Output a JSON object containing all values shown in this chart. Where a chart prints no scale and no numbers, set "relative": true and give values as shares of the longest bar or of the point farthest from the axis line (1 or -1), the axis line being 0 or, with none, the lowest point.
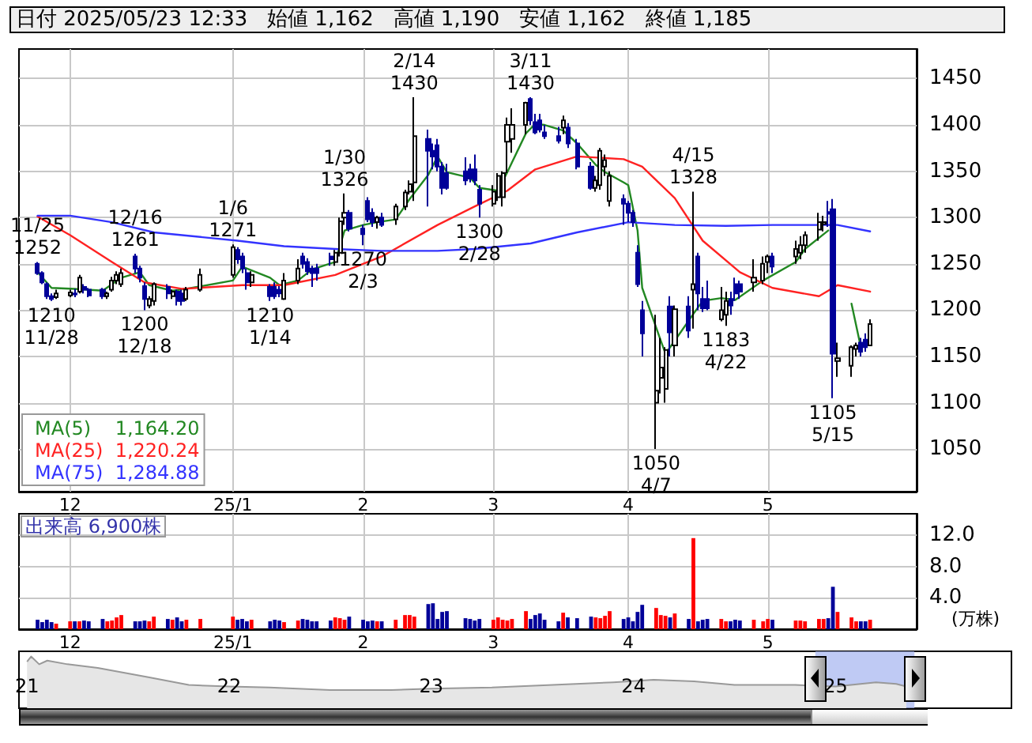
{
  "chart_data": [
    {
      "type": "candlestick",
      "title": "日付 2025/05/23 12:33",
      "annotations": [
        "始値 1,162",
        "高値 1,190",
        "安値 1,162",
        "終値 1,185",
        {
          "text": "11/25\n1252",
          "x": "2024-11-25",
          "y": 1252
        },
        {
          "text": "1210\n11/28",
          "x": "2024-11-28",
          "y": 1210
        },
        {
          "text": "12/16\n1261",
          "x": "2024-12-16",
          "y": 1261
        },
        {
          "text": "1200\n12/18",
          "x": "2024-12-18",
          "y": 1200
        },
        {
          "text": "1/6\n1271",
          "x": "2025-01-06",
          "y": 1271
        },
        {
          "text": "1210\n1/14",
          "x": "2025-01-14",
          "y": 1210
        },
        {
          "text": "1/30\n1326",
          "x": "2025-01-30",
          "y": 1326
        },
        {
          "text": "1270\n2/3",
          "x": "2025-02-03",
          "y": 1270
        },
        {
          "text": "2/14\n1430",
          "x": "2025-02-14",
          "y": 1430
        },
        {
          "text": "1300\n2/28",
          "x": "2025-02-28",
          "y": 1300
        },
        {
          "text": "3/11\n1430",
          "x": "2025-03-11",
          "y": 1430
        },
        {
          "text": "1050\n4/7",
          "x": "2025-04-07",
          "y": 1050
        },
        {
          "text": "4/15\n1328",
          "x": "2025-04-15",
          "y": 1328
        },
        {
          "text": "1183\n4/22",
          "x": "2025-04-22",
          "y": 1183
        },
        {
          "text": "1105\n5/15",
          "x": "2025-05-15",
          "y": 1105
        }
      ],
      "x": [
        "2024-11-25",
        "2024-11-26",
        "2024-11-27",
        "2024-11-28",
        "2024-11-29",
        "2024-12-02",
        "2024-12-03",
        "2024-12-04",
        "2024-12-05",
        "2024-12-06",
        "2024-12-09",
        "2024-12-10",
        "2024-12-11",
        "2024-12-12",
        "2024-12-13",
        "2024-12-16",
        "2024-12-17",
        "2024-12-18",
        "2024-12-19",
        "2024-12-20",
        "2024-12-23",
        "2024-12-24",
        "2024-12-25",
        "2024-12-26",
        "2024-12-27",
        "2024-12-30",
        "2025-01-06",
        "2025-01-07",
        "2025-01-08",
        "2025-01-09",
        "2025-01-10",
        "2025-01-14",
        "2025-01-15",
        "2025-01-16",
        "2025-01-17",
        "2025-01-20",
        "2025-01-21",
        "2025-01-22",
        "2025-01-23",
        "2025-01-24",
        "2025-01-27",
        "2025-01-28",
        "2025-01-29",
        "2025-01-30",
        "2025-01-31",
        "2025-02-03",
        "2025-02-04",
        "2025-02-05",
        "2025-02-06",
        "2025-02-07",
        "2025-02-10",
        "2025-02-12",
        "2025-02-13",
        "2025-02-14",
        "2025-02-17",
        "2025-02-18",
        "2025-02-19",
        "2025-02-20",
        "2025-02-21",
        "2025-02-25",
        "2025-02-26",
        "2025-02-27",
        "2025-02-28",
        "2025-03-03",
        "2025-03-04",
        "2025-03-05",
        "2025-03-06",
        "2025-03-07",
        "2025-03-10",
        "2025-03-11",
        "2025-03-12",
        "2025-03-13",
        "2025-03-14",
        "2025-03-17",
        "2025-03-18",
        "2025-03-19",
        "2025-03-21",
        "2025-03-24",
        "2025-03-25",
        "2025-03-26",
        "2025-03-27",
        "2025-03-28",
        "2025-03-31",
        "2025-04-01",
        "2025-04-02",
        "2025-04-03",
        "2025-04-04",
        "2025-04-07",
        "2025-04-08",
        "2025-04-09",
        "2025-04-10",
        "2025-04-11",
        "2025-04-14",
        "2025-04-15",
        "2025-04-16",
        "2025-04-17",
        "2025-04-18",
        "2025-04-21",
        "2025-04-22",
        "2025-04-23",
        "2025-04-24",
        "2025-04-25",
        "2025-04-28",
        "2025-04-30",
        "2025-05-01",
        "2025-05-02",
        "2025-05-07",
        "2025-05-08",
        "2025-05-09",
        "2025-05-12",
        "2025-05-13",
        "2025-05-14",
        "2025-05-15",
        "2025-05-16",
        "2025-05-19",
        "2025-05-20",
        "2025-05-21",
        "2025-05-22",
        "2025-05-23"
      ],
      "ohlc": [
        [
          1250,
          1252,
          1238,
          1240
        ],
        [
          1240,
          1242,
          1228,
          1230
        ],
        [
          1228,
          1230,
          1212,
          1215
        ],
        [
          1215,
          1218,
          1210,
          1212
        ],
        [
          1214,
          1222,
          1212,
          1218
        ],
        [
          1216,
          1222,
          1214,
          1219
        ],
        [
          1218,
          1223,
          1214,
          1217
        ],
        [
          1220,
          1238,
          1218,
          1235
        ],
        [
          1225,
          1228,
          1218,
          1222
        ],
        [
          1222,
          1224,
          1214,
          1216
        ],
        [
          1222,
          1224,
          1212,
          1215
        ],
        [
          1215,
          1220,
          1212,
          1218
        ],
        [
          1222,
          1236,
          1220,
          1232
        ],
        [
          1232,
          1242,
          1228,
          1238
        ],
        [
          1228,
          1245,
          1225,
          1240
        ],
        [
          1258,
          1261,
          1240,
          1245
        ],
        [
          1245,
          1248,
          1230,
          1235
        ],
        [
          1226,
          1230,
          1200,
          1212
        ],
        [
          1205,
          1215,
          1202,
          1212
        ],
        [
          1210,
          1230,
          1205,
          1228
        ],
        [
          1225,
          1228,
          1212,
          1218
        ],
        [
          1215,
          1222,
          1212,
          1220
        ],
        [
          1220,
          1222,
          1205,
          1210
        ],
        [
          1218,
          1222,
          1205,
          1210
        ],
        [
          1212,
          1225,
          1210,
          1222
        ],
        [
          1222,
          1245,
          1220,
          1238
        ],
        [
          1238,
          1271,
          1235,
          1268
        ],
        [
          1265,
          1268,
          1250,
          1255
        ],
        [
          1258,
          1262,
          1240,
          1245
        ],
        [
          1240,
          1245,
          1222,
          1230
        ],
        [
          1230,
          1242,
          1225,
          1238
        ],
        [
          1225,
          1228,
          1210,
          1215
        ],
        [
          1225,
          1230,
          1212,
          1215
        ],
        [
          1222,
          1226,
          1214,
          1218
        ],
        [
          1212,
          1240,
          1211,
          1232
        ],
        [
          1232,
          1255,
          1228,
          1245
        ],
        [
          1258,
          1262,
          1245,
          1250
        ],
        [
          1252,
          1256,
          1238,
          1242
        ],
        [
          1245,
          1248,
          1225,
          1240
        ],
        [
          1245,
          1250,
          1232,
          1240
        ],
        [
          1258,
          1262,
          1248,
          1255
        ],
        [
          1252,
          1265,
          1248,
          1262
        ],
        [
          1262,
          1300,
          1258,
          1296
        ],
        [
          1300,
          1326,
          1292,
          1305
        ],
        [
          1305,
          1308,
          1285,
          1288
        ],
        [
          1288,
          1292,
          1270,
          1282
        ],
        [
          1318,
          1322,
          1295,
          1298
        ],
        [
          1305,
          1310,
          1290,
          1295
        ],
        [
          1295,
          1302,
          1288,
          1300
        ],
        [
          1300,
          1305,
          1290,
          1292
        ],
        [
          1298,
          1315,
          1292,
          1312
        ],
        [
          1312,
          1330,
          1308,
          1327
        ],
        [
          1328,
          1340,
          1325,
          1336
        ],
        [
          1338,
          1430,
          1318,
          1388
        ],
        [
          1385,
          1395,
          1312,
          1372
        ],
        [
          1372,
          1380,
          1352,
          1366
        ],
        [
          1378,
          1385,
          1350,
          1355
        ],
        [
          1355,
          1360,
          1325,
          1332
        ],
        [
          1348,
          1358,
          1330,
          1332
        ],
        [
          1350,
          1365,
          1335,
          1340
        ],
        [
          1352,
          1358,
          1338,
          1342
        ],
        [
          1352,
          1368,
          1335,
          1340
        ],
        [
          1330,
          1335,
          1300,
          1315
        ],
        [
          1315,
          1335,
          1312,
          1328
        ],
        [
          1322,
          1348,
          1318,
          1345
        ],
        [
          1322,
          1350,
          1312,
          1348
        ],
        [
          1382,
          1408,
          1348,
          1400
        ],
        [
          1385,
          1418,
          1370,
          1400
        ],
        [
          1400,
          1425,
          1390,
          1424
        ],
        [
          1428,
          1430,
          1400,
          1405
        ],
        [
          1403,
          1412,
          1390,
          1392
        ],
        [
          1405,
          1412,
          1392,
          1395
        ],
        [
          1392,
          1400,
          1385,
          1388
        ],
        [
          1388,
          1398,
          1380,
          1383
        ],
        [
          1397,
          1410,
          1390,
          1405
        ],
        [
          1397,
          1402,
          1375,
          1380
        ],
        [
          1380,
          1385,
          1352,
          1355
        ],
        [
          1355,
          1360,
          1330,
          1332
        ],
        [
          1332,
          1345,
          1328,
          1340
        ],
        [
          1335,
          1375,
          1330,
          1372
        ],
        [
          1355,
          1368,
          1345,
          1362
        ],
        [
          1318,
          1350,
          1312,
          1345
        ],
        [
          1320,
          1325,
          1292,
          1315
        ],
        [
          1315,
          1318,
          1295,
          1305
        ],
        [
          1305,
          1308,
          1290,
          1295
        ],
        [
          1262,
          1270,
          1225,
          1228
        ],
        [
          1200,
          1210,
          1150,
          1175
        ],
        [
          1100,
          1195,
          1050,
          1113
        ],
        [
          1127,
          1170,
          1110,
          1138
        ],
        [
          1115,
          1160,
          1100,
          1157
        ],
        [
          1204,
          1215,
          1150,
          1176
        ],
        [
          1162,
          1205,
          1150,
          1201
        ],
        [
          1204,
          1215,
          1170,
          1178
        ],
        [
          1222,
          1328,
          1180,
          1228
        ],
        [
          1258,
          1262,
          1200,
          1218
        ],
        [
          1212,
          1225,
          1198,
          1202
        ],
        [
          1212,
          1232,
          1200,
          1202
        ],
        [
          1190,
          1225,
          1188,
          1200
        ],
        [
          1195,
          1220,
          1183,
          1210
        ],
        [
          1212,
          1220,
          1195,
          1205
        ],
        [
          1228,
          1235,
          1210,
          1218
        ],
        [
          1228,
          1232,
          1212,
          1220
        ],
        [
          1230,
          1255,
          1220,
          1235
        ],
        [
          1232,
          1258,
          1228,
          1250
        ],
        [
          1252,
          1260,
          1240,
          1258
        ],
        [
          1258,
          1262,
          1240,
          1247
        ],
        [
          1258,
          1275,
          1250,
          1266
        ],
        [
          1262,
          1280,
          1255,
          1270
        ],
        [
          1270,
          1285,
          1262,
          1281
        ],
        [
          1287,
          1305,
          1275,
          1295
        ],
        [
          1293,
          1302,
          1285,
          1295
        ],
        [
          1306,
          1318,
          1290,
          1304
        ],
        [
          1309,
          1320,
          1105,
          1153
        ],
        [
          1145,
          1165,
          1128,
          1148
        ],
        [
          1140,
          1162,
          1128,
          1160
        ],
        [
          1158,
          1165,
          1150,
          1162
        ],
        [
          1165,
          1170,
          1150,
          1155
        ],
        [
          1168,
          1175,
          1155,
          1160
        ],
        [
          1162,
          1190,
          1162,
          1185
        ]
      ],
      "series": [
        {
          "type": "line",
          "name": "MA(5)    1,164.20",
          "color": "#228822",
          "x": [
            "2024-11-25",
            "2024-11-28",
            "2024-12-03",
            "2024-12-09",
            "2024-12-13",
            "2024-12-17",
            "2024-12-19",
            "2024-12-24",
            "2024-12-27",
            "2025-01-06",
            "2025-01-08",
            "2025-01-14",
            "2025-01-16",
            "2025-01-20",
            "2025-01-23",
            "2025-01-28",
            "2025-01-30",
            "2025-02-03",
            "2025-02-06",
            "2025-02-10",
            "2025-02-13",
            "2025-02-17",
            "2025-02-19",
            "2025-02-21",
            "2025-02-26",
            "2025-02-28",
            "2025-03-04",
            "2025-03-06",
            "2025-03-10",
            "2025-03-12",
            "2025-03-14",
            "2025-03-18",
            "2025-03-21",
            "2025-03-25",
            "2025-03-27",
            "2025-03-31",
            "2025-04-01",
            "2025-04-03",
            "2025-04-04",
            "2025-04-08",
            "2025-04-09",
            "2025-04-11",
            "2025-04-15",
            "2025-04-17",
            "2025-04-21",
            "2025-04-24",
            "2025-04-30",
            "2025-05-07",
            "2025-05-09",
            "2025-05-14",
            "2025-05-15",
            "2025-05-19",
            "2025-05-21"
          ],
          "values": [
            1241,
            1224,
            1223,
            1221,
            1235,
            1241,
            1227,
            1221,
            1223,
            1232,
            1247,
            1235,
            1227,
            1232,
            1244,
            1252,
            1286,
            1292,
            1295,
            1298,
            1320,
            1346,
            1366,
            1349,
            1343,
            1332,
            1329,
            1349,
            1391,
            1401,
            1400,
            1394,
            1380,
            1357,
            1349,
            1338,
            1335,
            1286,
            1224,
            1167,
            1153,
            1167,
            1196,
            1210,
            1213,
            1211,
            1232,
            1252,
            1266,
            1286,
            null,
            1207,
            1160
          ]
        },
        {
          "type": "line",
          "name": "MA(25)  1,220.24",
          "color": "#ff2222",
          "x": [
            "2024-11-25",
            "2024-12-02",
            "2024-12-11",
            "2024-12-18",
            "2024-12-26",
            "2025-01-08",
            "2025-01-17",
            "2025-01-28",
            "2025-02-07",
            "2025-02-19",
            "2025-02-27",
            "2025-03-06",
            "2025-03-12",
            "2025-03-21",
            "2025-03-31",
            "2025-04-04",
            "2025-04-11",
            "2025-04-17",
            "2025-04-25",
            "2025-05-02",
            "2025-05-12",
            "2025-05-16",
            "2025-05-23"
          ],
          "values": [
            1301,
            1281,
            1252,
            1230,
            1223,
            1227,
            1227,
            1238,
            1258,
            1292,
            1312,
            1329,
            1352,
            1366,
            1363,
            1355,
            1321,
            1275,
            1241,
            1224,
            1215,
            1227,
            1220
          ]
        },
        {
          "type": "line",
          "name": "MA(75)  1,284.88",
          "color": "#3333ff",
          "x": [
            "2024-11-25",
            "2024-12-02",
            "2024-12-11",
            "2024-12-20",
            "2025-01-07",
            "2025-01-17",
            "2025-01-28",
            "2025-02-07",
            "2025-02-19",
            "2025-02-27",
            "2025-03-11",
            "2025-03-21",
            "2025-04-01",
            "2025-04-11",
            "2025-04-22",
            "2025-05-02",
            "2025-05-16",
            "2025-05-23"
          ],
          "values": [
            1302,
            1302,
            1295,
            1284,
            1275,
            1269,
            1266,
            1264,
            1264,
            1266,
            1272,
            1284,
            1295,
            1292,
            1291,
            1292,
            1292,
            1285
          ]
        }
      ],
      "xlim": [
        "2024-11-21",
        "2025-06-02"
      ],
      "ylim": [
        1004,
        1482
      ],
      "yticks": [
        1050,
        1100,
        1150,
        1200,
        1250,
        1300,
        1350,
        1400,
        1450
      ],
      "xticks": [
        {
          "value": "2024-12-02",
          "label": "12"
        },
        {
          "value": "2025-01-06",
          "label": "25/1"
        },
        {
          "value": "2025-02-03",
          "label": "2"
        },
        {
          "value": "2025-03-03",
          "label": "3"
        },
        {
          "value": "2025-04-01",
          "label": "4"
        },
        {
          "value": "2025-05-01",
          "label": "5"
        }
      ],
      "grid": true,
      "legend": "bottom left",
      "marker": "none",
      "line_style": "solid"
    },
    {
      "type": "bar",
      "title": "出来高 6,900株",
      "ylabel": "(万株)",
      "x": [
        "2024-11-25",
        "2024-11-26",
        "2024-11-27",
        "2024-11-28",
        "2024-11-29",
        "2024-12-02",
        "2024-12-03",
        "2024-12-04",
        "2024-12-05",
        "2024-12-06",
        "2024-12-09",
        "2024-12-10",
        "2024-12-11",
        "2024-12-12",
        "2024-12-13",
        "2024-12-16",
        "2024-12-17",
        "2024-12-18",
        "2024-12-19",
        "2024-12-20",
        "2024-12-23",
        "2024-12-24",
        "2024-12-25",
        "2024-12-26",
        "2024-12-27",
        "2024-12-30",
        "2025-01-06",
        "2025-01-07",
        "2025-01-08",
        "2025-01-09",
        "2025-01-10",
        "2025-01-14",
        "2025-01-15",
        "2025-01-16",
        "2025-01-17",
        "2025-01-20",
        "2025-01-21",
        "2025-01-22",
        "2025-01-23",
        "2025-01-24",
        "2025-01-27",
        "2025-01-28",
        "2025-01-29",
        "2025-01-30",
        "2025-01-31",
        "2025-02-03",
        "2025-02-04",
        "2025-02-05",
        "2025-02-06",
        "2025-02-07",
        "2025-02-10",
        "2025-02-12",
        "2025-02-13",
        "2025-02-14",
        "2025-02-17",
        "2025-02-18",
        "2025-02-19",
        "2025-02-20",
        "2025-02-21",
        "2025-02-25",
        "2025-02-26",
        "2025-02-27",
        "2025-02-28",
        "2025-03-03",
        "2025-03-04",
        "2025-03-05",
        "2025-03-06",
        "2025-03-07",
        "2025-03-10",
        "2025-03-11",
        "2025-03-12",
        "2025-03-13",
        "2025-03-14",
        "2025-03-17",
        "2025-03-18",
        "2025-03-19",
        "2025-03-21",
        "2025-03-24",
        "2025-03-25",
        "2025-03-26",
        "2025-03-27",
        "2025-03-28",
        "2025-03-31",
        "2025-04-01",
        "2025-04-02",
        "2025-04-03",
        "2025-04-04",
        "2025-04-07",
        "2025-04-08",
        "2025-04-09",
        "2025-04-10",
        "2025-04-11",
        "2025-04-14",
        "2025-04-15",
        "2025-04-16",
        "2025-04-17",
        "2025-04-18",
        "2025-04-21",
        "2025-04-22",
        "2025-04-23",
        "2025-04-24",
        "2025-04-25",
        "2025-04-28",
        "2025-04-30",
        "2025-05-01",
        "2025-05-02",
        "2025-05-07",
        "2025-05-08",
        "2025-05-09",
        "2025-05-12",
        "2025-05-13",
        "2025-05-14",
        "2025-05-15",
        "2025-05-16",
        "2025-05-19",
        "2025-05-20",
        "2025-05-21",
        "2025-05-22",
        "2025-05-23"
      ],
      "values": [
        1.2,
        0.9,
        1.2,
        0.9,
        0.7,
        1.0,
        1.0,
        1.0,
        1.1,
        1.0,
        1.3,
        1.0,
        1.1,
        1.5,
        1.8,
        1.0,
        1.0,
        1.1,
        1.0,
        1.6,
        1.3,
        1.2,
        1.5,
        1.0,
        1.2,
        1.3,
        1.6,
        1.2,
        1.3,
        1.0,
        1.2,
        1.0,
        1.2,
        1.1,
        0.9,
        1.1,
        1.3,
        1.2,
        1.0,
        1.0,
        1.1,
        1.5,
        1.4,
        1.2,
        1.6,
        1.2,
        1.0,
        1.1,
        1.0,
        1.0,
        1.2,
        1.8,
        1.8,
        1.6,
        3.2,
        3.3,
        1.3,
        2.2,
        2.3,
        1.4,
        1.3,
        1.1,
        1.3,
        1.2,
        1.5,
        1.2,
        1.1,
        1.3,
        2.3,
        1.3,
        1.8,
        2.0,
        1.2,
        1.0,
        2.1,
        1.5,
        1.4,
        1.6,
        1.5,
        1.4,
        1.7,
        2.3,
        1.3,
        1.5,
        1.0,
        2.2,
        3.1,
        2.7,
        1.8,
        1.7,
        1.5,
        2.0,
        1.3,
        11.6,
        1.0,
        1.2,
        1.3,
        1.3,
        1.0,
        1.0,
        1.2,
        1.1,
        1.2,
        1.0,
        1.3,
        1.2,
        1.1,
        1.1,
        1.0,
        1.3,
        1.3,
        1.4,
        5.4,
        2.2,
        1.5,
        1.0,
        1.0,
        1.0,
        1.2
      ],
      "colors": [
        "#000099",
        "#000099",
        "#000099",
        "#000099",
        "#ff0000",
        "#ff0000",
        "#000099",
        "#ff0000",
        "#000099",
        "#000099",
        "#000099",
        "#ff0000",
        "#ff0000",
        "#ff0000",
        "#ff0000",
        "#000099",
        "#000099",
        "#000099",
        "#ff0000",
        "#ff0000",
        "#000099",
        "#ff0000",
        "#000099",
        "#000099",
        "#ff0000",
        "#ff0000",
        "#ff0000",
        "#000099",
        "#000099",
        "#000099",
        "#ff0000",
        "#000099",
        "#000099",
        "#000099",
        "#ff0000",
        "#ff0000",
        "#000099",
        "#000099",
        "#000099",
        "#000099",
        "#000099",
        "#ff0000",
        "#ff0000",
        "#ff0000",
        "#000099",
        "#000099",
        "#000099",
        "#000099",
        "#ff0000",
        "#000099",
        "#ff0000",
        "#ff0000",
        "#ff0000",
        "#ff0000",
        "#000099",
        "#000099",
        "#000099",
        "#000099",
        "#000099",
        "#000099",
        "#000099",
        "#000099",
        "#000099",
        "#ff0000",
        "#ff0000",
        "#ff0000",
        "#ff0000",
        "#ff0000",
        "#ff0000",
        "#000099",
        "#000099",
        "#000099",
        "#000099",
        "#000099",
        "#ff0000",
        "#000099",
        "#000099",
        "#000099",
        "#ff0000",
        "#ff0000",
        "#ff0000",
        "#ff0000",
        "#000099",
        "#000099",
        "#000099",
        "#000099",
        "#000099",
        "#ff0000",
        "#ff0000",
        "#ff0000",
        "#000099",
        "#ff0000",
        "#000099",
        "#ff0000",
        "#000099",
        "#000099",
        "#000099",
        "#ff0000",
        "#ff0000",
        "#000099",
        "#000099",
        "#000099",
        "#ff0000",
        "#ff0000",
        "#ff0000",
        "#000099",
        "#ff0000",
        "#ff0000",
        "#ff0000",
        "#ff0000",
        "#ff0000",
        "#000099",
        "#000099",
        "#ff0000",
        "#ff0000",
        "#ff0000",
        "#000099",
        "#000099",
        "#ff0000"
      ],
      "xlim": [
        "2024-11-21",
        "2025-06-02"
      ],
      "ylim": [
        0,
        14.7
      ],
      "yticks": [
        {
          "value": 4,
          "label": "4.0"
        },
        {
          "value": 8,
          "label": "8.0"
        },
        {
          "value": 12,
          "label": "12.0"
        }
      ],
      "xticks": [
        {
          "value": "2024-12-02",
          "label": "12"
        },
        {
          "value": "2025-01-06",
          "label": "25/1"
        },
        {
          "value": "2025-02-03",
          "label": "2"
        },
        {
          "value": "2025-03-03",
          "label": "3"
        },
        {
          "value": "2025-04-01",
          "label": "4"
        },
        {
          "value": "2025-05-01",
          "label": "5"
        }
      ],
      "grid": true
    },
    {
      "type": "area",
      "relative": true,
      "color": "#999999",
      "x": [
        2021.0,
        2021.02,
        2021.06,
        2021.1,
        2021.2,
        2021.35,
        2021.6,
        2021.8,
        2022.0,
        2022.2,
        2022.5,
        2022.8,
        2023.0,
        2023.3,
        2023.6,
        2023.9,
        2024.1,
        2024.3,
        2024.5,
        2024.8,
        2025.0,
        2025.2,
        2025.3,
        2025.35
      ],
      "values": [
        0.9,
        1.0,
        0.85,
        0.92,
        0.85,
        0.78,
        0.6,
        0.45,
        0.42,
        0.4,
        0.35,
        0.35,
        0.38,
        0.4,
        0.45,
        0.5,
        0.55,
        0.52,
        0.45,
        0.45,
        0.42,
        0.5,
        0.47,
        0.42
      ],
      "xlim": [
        2020.96,
        2025.87
      ],
      "xticks": [
        {
          "value": 2021,
          "label": "21"
        },
        {
          "value": 2022,
          "label": "22"
        },
        {
          "value": 2023,
          "label": "23"
        },
        {
          "value": 2024,
          "label": "24"
        },
        {
          "value": 2025,
          "label": "25"
        }
      ],
      "bands": [
        {
          "axis": "x",
          "from": 2024.9,
          "to": 2025.39,
          "color": "#aab8f0"
        }
      ]
    }
  ]
}
